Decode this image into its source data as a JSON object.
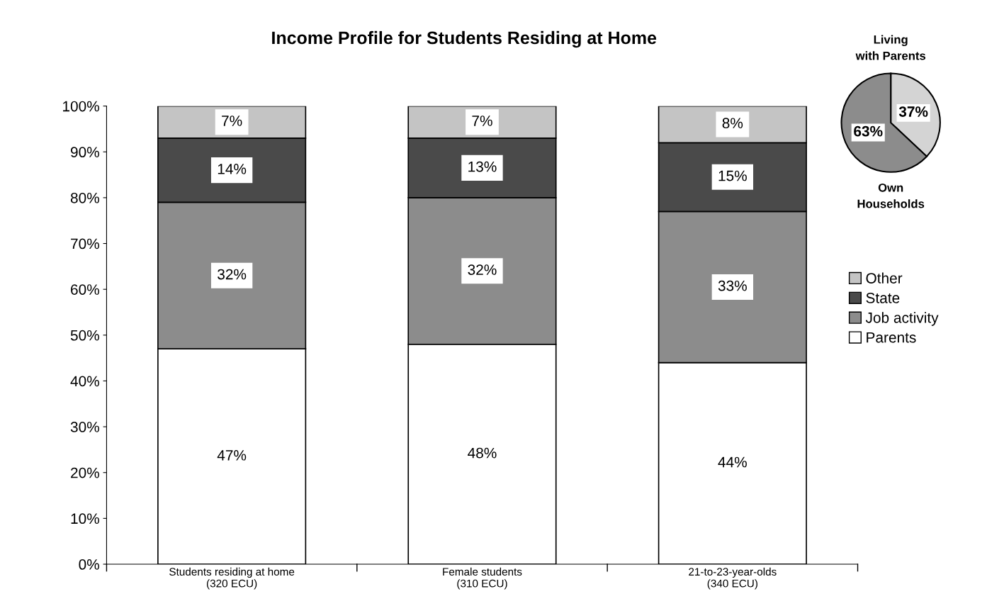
{
  "chart_data": [
    {
      "type": "bar",
      "stacked": true,
      "title": "Income Profile for Students Residing at Home",
      "categories": [
        "Students residing at home\n(320 ECU)",
        "Female students\n(310 ECU)",
        "21-to-23-year-olds\n(340 ECU)"
      ],
      "series": [
        {
          "name": "Parents",
          "color": "#ffffff",
          "values": [
            47,
            48,
            44
          ],
          "value_labels": [
            "47%",
            "48%",
            "44%"
          ]
        },
        {
          "name": "Job activity",
          "color": "#8c8c8c",
          "values": [
            32,
            32,
            33
          ],
          "value_labels": [
            "32%",
            "32%",
            "33%"
          ]
        },
        {
          "name": "State",
          "color": "#4a4a4a",
          "values": [
            14,
            13,
            15
          ],
          "value_labels": [
            "14%",
            "13%",
            "15%"
          ]
        },
        {
          "name": "Other",
          "color": "#c4c4c4",
          "values": [
            7,
            7,
            8
          ],
          "value_labels": [
            "7%",
            "7%",
            "8%"
          ]
        }
      ],
      "ylim": [
        0,
        100
      ],
      "yticks": [
        {
          "value": 0,
          "label": "0%"
        },
        {
          "value": 10,
          "label": "10%"
        },
        {
          "value": 20,
          "label": "20%"
        },
        {
          "value": 30,
          "label": "30%"
        },
        {
          "value": 40,
          "label": "40%"
        },
        {
          "value": 50,
          "label": "50%"
        },
        {
          "value": 60,
          "label": "60%"
        },
        {
          "value": 70,
          "label": "70%"
        },
        {
          "value": 80,
          "label": "80%"
        },
        {
          "value": 90,
          "label": "90%"
        },
        {
          "value": 100,
          "label": "100%"
        }
      ],
      "grid": false,
      "legend": "right"
    },
    {
      "type": "pie",
      "categories": [
        "Living with Parents",
        "Own Households"
      ],
      "values": [
        37,
        63
      ],
      "colors": [
        "#d4d4d4",
        "#8c8c8c"
      ],
      "value_labels": [
        "37%",
        "63%"
      ]
    }
  ]
}
